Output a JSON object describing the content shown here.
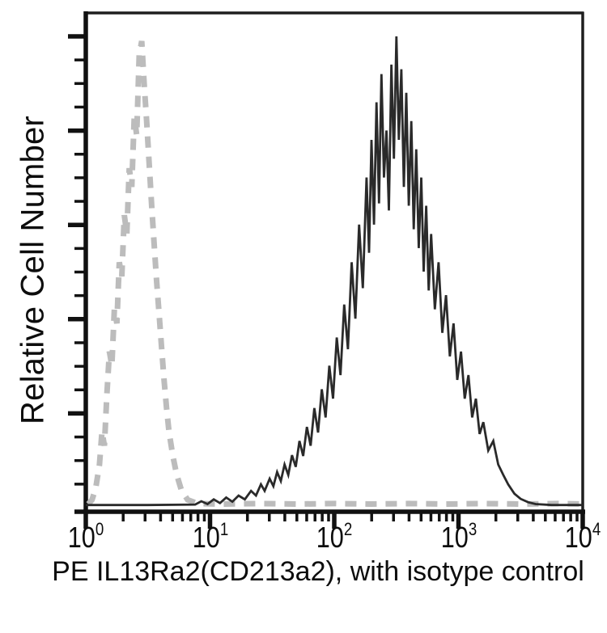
{
  "chart_data": {
    "type": "line",
    "subtype": "flow-cytometry-overlay-histogram",
    "title": "",
    "xlabel": "PE IL13Ra2(CD213a2), with isotype control",
    "ylabel": "Relative Cell Number",
    "x_scale": "log10",
    "xlim_log": [
      0,
      4
    ],
    "grid": false,
    "legend": "none",
    "x_ticks": [
      {
        "text": "10",
        "exp": "0",
        "log": 0
      },
      {
        "text": "10",
        "exp": "1",
        "log": 1
      },
      {
        "text": "10",
        "exp": "2",
        "log": 2
      },
      {
        "text": "10",
        "exp": "3",
        "log": 3
      },
      {
        "text": "10",
        "exp": "4",
        "log": 4
      }
    ],
    "x_minor_tick_multipliers": [
      2,
      3,
      4,
      5,
      6,
      7,
      8,
      9
    ],
    "y_axis": {
      "tick_labels_visible": false,
      "major_tick_count": 5,
      "minor_ticks_between": 3
    },
    "axis_color": "#111111",
    "series": [
      {
        "name": "Isotype control",
        "slug": "isotype-control",
        "style": "dashed",
        "color": "#bcbcbc",
        "stroke_width": 7,
        "dash": "14 11",
        "peak_log_x": 0.45,
        "points": [
          [
            0.02,
            0.006
          ],
          [
            0.05,
            0.015
          ],
          [
            0.08,
            0.04
          ],
          [
            0.11,
            0.09
          ],
          [
            0.13,
            0.16
          ],
          [
            0.15,
            0.13
          ],
          [
            0.17,
            0.24
          ],
          [
            0.19,
            0.33
          ],
          [
            0.21,
            0.3
          ],
          [
            0.23,
            0.42
          ],
          [
            0.25,
            0.39
          ],
          [
            0.27,
            0.52
          ],
          [
            0.29,
            0.49
          ],
          [
            0.31,
            0.62
          ],
          [
            0.33,
            0.58
          ],
          [
            0.35,
            0.72
          ],
          [
            0.37,
            0.68
          ],
          [
            0.39,
            0.83
          ],
          [
            0.41,
            0.79
          ],
          [
            0.43,
            0.96
          ],
          [
            0.45,
            0.99
          ],
          [
            0.47,
            0.9
          ],
          [
            0.49,
            0.82
          ],
          [
            0.51,
            0.73
          ],
          [
            0.53,
            0.64
          ],
          [
            0.55,
            0.56
          ],
          [
            0.57,
            0.48
          ],
          [
            0.59,
            0.41
          ],
          [
            0.61,
            0.34
          ],
          [
            0.63,
            0.27
          ],
          [
            0.65,
            0.21
          ],
          [
            0.67,
            0.16
          ],
          [
            0.7,
            0.11
          ],
          [
            0.73,
            0.07
          ],
          [
            0.77,
            0.035
          ],
          [
            0.82,
            0.015
          ],
          [
            0.9,
            0.007
          ],
          [
            1.1,
            0.006
          ],
          [
            1.4,
            0.007
          ],
          [
            1.7,
            0.006
          ],
          [
            2.0,
            0.007
          ],
          [
            2.3,
            0.006
          ],
          [
            2.6,
            0.007
          ],
          [
            2.9,
            0.006
          ],
          [
            3.2,
            0.007
          ],
          [
            3.5,
            0.006
          ],
          [
            3.8,
            0.007
          ],
          [
            4.0,
            0.006
          ]
        ]
      },
      {
        "name": "PE IL13Ra2(CD213a2)",
        "slug": "pe-il13ra2-cd213a2",
        "style": "solid",
        "color": "#2a2a2a",
        "stroke_width": 2.8,
        "peak_log_x": 2.5,
        "points": [
          [
            0.0,
            0.004
          ],
          [
            0.5,
            0.004
          ],
          [
            0.88,
            0.005
          ],
          [
            0.93,
            0.012
          ],
          [
            0.98,
            0.006
          ],
          [
            1.03,
            0.016
          ],
          [
            1.08,
            0.008
          ],
          [
            1.13,
            0.02
          ],
          [
            1.18,
            0.011
          ],
          [
            1.23,
            0.024
          ],
          [
            1.28,
            0.016
          ],
          [
            1.33,
            0.034
          ],
          [
            1.37,
            0.024
          ],
          [
            1.41,
            0.048
          ],
          [
            1.44,
            0.034
          ],
          [
            1.48,
            0.06
          ],
          [
            1.51,
            0.044
          ],
          [
            1.54,
            0.074
          ],
          [
            1.57,
            0.055
          ],
          [
            1.6,
            0.09
          ],
          [
            1.63,
            0.068
          ],
          [
            1.66,
            0.11
          ],
          [
            1.69,
            0.085
          ],
          [
            1.72,
            0.14
          ],
          [
            1.75,
            0.108
          ],
          [
            1.78,
            0.17
          ],
          [
            1.81,
            0.13
          ],
          [
            1.84,
            0.21
          ],
          [
            1.87,
            0.158
          ],
          [
            1.9,
            0.25
          ],
          [
            1.93,
            0.19
          ],
          [
            1.96,
            0.3
          ],
          [
            1.99,
            0.23
          ],
          [
            2.02,
            0.36
          ],
          [
            2.05,
            0.28
          ],
          [
            2.08,
            0.43
          ],
          [
            2.11,
            0.335
          ],
          [
            2.14,
            0.52
          ],
          [
            2.17,
            0.4
          ],
          [
            2.2,
            0.6
          ],
          [
            2.23,
            0.465
          ],
          [
            2.26,
            0.7
          ],
          [
            2.28,
            0.54
          ],
          [
            2.3,
            0.78
          ],
          [
            2.32,
            0.6
          ],
          [
            2.34,
            0.86
          ],
          [
            2.36,
            0.645
          ],
          [
            2.38,
            0.92
          ],
          [
            2.4,
            0.7
          ],
          [
            2.42,
            0.8
          ],
          [
            2.44,
            0.63
          ],
          [
            2.46,
            0.94
          ],
          [
            2.48,
            0.74
          ],
          [
            2.5,
            1.0
          ],
          [
            2.52,
            0.78
          ],
          [
            2.54,
            0.93
          ],
          [
            2.56,
            0.68
          ],
          [
            2.58,
            0.88
          ],
          [
            2.6,
            0.64
          ],
          [
            2.62,
            0.82
          ],
          [
            2.64,
            0.59
          ],
          [
            2.66,
            0.76
          ],
          [
            2.68,
            0.55
          ],
          [
            2.7,
            0.7
          ],
          [
            2.72,
            0.5
          ],
          [
            2.74,
            0.64
          ],
          [
            2.76,
            0.46
          ],
          [
            2.78,
            0.58
          ],
          [
            2.81,
            0.42
          ],
          [
            2.84,
            0.52
          ],
          [
            2.87,
            0.37
          ],
          [
            2.9,
            0.45
          ],
          [
            2.93,
            0.32
          ],
          [
            2.96,
            0.39
          ],
          [
            2.99,
            0.27
          ],
          [
            3.02,
            0.33
          ],
          [
            3.05,
            0.23
          ],
          [
            3.08,
            0.28
          ],
          [
            3.11,
            0.19
          ],
          [
            3.14,
            0.23
          ],
          [
            3.17,
            0.155
          ],
          [
            3.2,
            0.18
          ],
          [
            3.24,
            0.12
          ],
          [
            3.28,
            0.14
          ],
          [
            3.32,
            0.09
          ],
          [
            3.36,
            0.068
          ],
          [
            3.4,
            0.048
          ],
          [
            3.45,
            0.028
          ],
          [
            3.5,
            0.017
          ],
          [
            3.56,
            0.01
          ],
          [
            3.62,
            0.006
          ],
          [
            3.75,
            0.004
          ],
          [
            4.0,
            0.004
          ]
        ]
      }
    ]
  }
}
